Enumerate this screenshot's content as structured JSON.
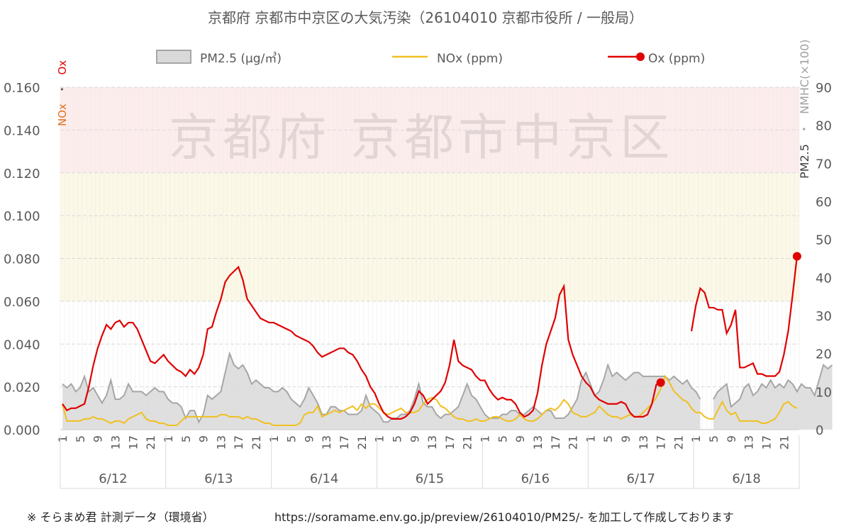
{
  "chart_data": {
    "type": "line",
    "title": "京都府 京都市中京区の大気汚染（26104010 京都市役所 / 一般局）",
    "watermark": "京都府  京都市中京区",
    "y_left": {
      "label_nox": "NOx",
      "label_sep": "・",
      "label_ox": "Ox",
      "range": [
        0,
        0.16
      ],
      "ticks": [
        "0.000",
        "0.020",
        "0.040",
        "0.060",
        "0.080",
        "0.100",
        "0.120",
        "0.140",
        "0.160"
      ]
    },
    "y_right": {
      "label_pm": "PM2.5",
      "label_sep": "・",
      "label_nmhc": "NMHC(×100)",
      "range": [
        0,
        90
      ],
      "ticks": [
        "0",
        "10",
        "20",
        "30",
        "40",
        "50",
        "60",
        "70",
        "80",
        "90"
      ]
    },
    "bands": [
      {
        "from": 0.12,
        "to": 0.16,
        "color": "#fdecec"
      },
      {
        "from": 0.06,
        "to": 0.12,
        "color": "#fcf8e6"
      }
    ],
    "hour_ticks": [
      "1",
      "5",
      "9",
      "13",
      "17",
      "21"
    ],
    "days": [
      "6/12",
      "6/13",
      "6/14",
      "6/15",
      "6/16",
      "6/17",
      "6/18"
    ],
    "hours_per_day": 24,
    "legend": [
      {
        "label": "PM2.5 (μg/㎥)",
        "kind": "area",
        "color": "#a6a6a6"
      },
      {
        "label": "NOx (ppm)",
        "kind": "line",
        "color": "#f0c020"
      },
      {
        "label": "Ox (ppm)",
        "kind": "line-marker",
        "color": "#e00000"
      }
    ],
    "series": [
      {
        "name": "PM2.5 (μg/㎥)",
        "axis": "right",
        "type": "area",
        "color": "#a6a6a6",
        "values": [
          12,
          11,
          12,
          10,
          11,
          14,
          10,
          11,
          9,
          7,
          9,
          13,
          8,
          8,
          9,
          12,
          10,
          10,
          10,
          9,
          10,
          11,
          10,
          10,
          8,
          7,
          7,
          6,
          3,
          5,
          5,
          2,
          4,
          9,
          8,
          9,
          10,
          15,
          20,
          17,
          16,
          17,
          15,
          12,
          13,
          12,
          11,
          11,
          10,
          10,
          11,
          10,
          8,
          7,
          6,
          8,
          11,
          9,
          7,
          4,
          4,
          6,
          6,
          5,
          5,
          4,
          4,
          4,
          5,
          9,
          6,
          5,
          4,
          2,
          2,
          3,
          3,
          4,
          4,
          5,
          8,
          12,
          7,
          6,
          6,
          4,
          3,
          4,
          4,
          5,
          6,
          9,
          12,
          9,
          8,
          6,
          4,
          3,
          3,
          3,
          4,
          4,
          5,
          5,
          4,
          4,
          5,
          6,
          5,
          4,
          5,
          5,
          3,
          3,
          3,
          4,
          6,
          8,
          13,
          15,
          12,
          9,
          10,
          13,
          17,
          14,
          15,
          14,
          13,
          14,
          15,
          15,
          14,
          14,
          14,
          14,
          14,
          14,
          13,
          14,
          13,
          12,
          13,
          11,
          10,
          8,
          null,
          null,
          8,
          10,
          11,
          12,
          6,
          7,
          8,
          11,
          12,
          9,
          10,
          12,
          11,
          13,
          11,
          12,
          11,
          13,
          12,
          10,
          12,
          11,
          11,
          9,
          13,
          17,
          16,
          17,
          null,
          null,
          null,
          null,
          null,
          null,
          null,
          null,
          null,
          null,
          null,
          null
        ]
      },
      {
        "name": "NOx (ppm)",
        "axis": "left",
        "type": "line",
        "color": "#f0c020",
        "values": [
          0.012,
          0.004,
          0.004,
          0.004,
          0.004,
          0.005,
          0.005,
          0.006,
          0.005,
          0.005,
          0.004,
          0.003,
          0.004,
          0.004,
          0.003,
          0.005,
          0.006,
          0.007,
          0.008,
          0.005,
          0.004,
          0.004,
          0.003,
          0.003,
          0.002,
          0.002,
          0.002,
          0.004,
          0.006,
          0.006,
          0.006,
          0.006,
          0.006,
          0.006,
          0.006,
          0.006,
          0.007,
          0.007,
          0.006,
          0.006,
          0.006,
          0.005,
          0.006,
          0.005,
          0.005,
          0.004,
          0.003,
          0.003,
          0.002,
          0.002,
          0.002,
          0.002,
          0.002,
          0.002,
          0.003,
          0.007,
          0.008,
          0.008,
          0.011,
          0.006,
          0.007,
          0.008,
          0.009,
          0.008,
          0.009,
          0.01,
          0.011,
          0.009,
          0.012,
          0.01,
          0.012,
          0.012,
          0.01,
          0.008,
          0.007,
          0.008,
          0.009,
          0.01,
          0.008,
          0.008,
          0.008,
          0.009,
          0.012,
          0.014,
          0.015,
          0.014,
          0.011,
          0.01,
          0.008,
          0.006,
          0.005,
          0.005,
          0.004,
          0.004,
          0.005,
          0.004,
          0.004,
          0.005,
          0.006,
          0.006,
          0.005,
          0.004,
          0.004,
          0.005,
          0.007,
          0.005,
          0.004,
          0.004,
          0.005,
          0.007,
          0.009,
          0.01,
          0.009,
          0.011,
          0.014,
          0.012,
          0.008,
          0.007,
          0.006,
          0.006,
          0.007,
          0.008,
          0.011,
          0.009,
          0.007,
          0.006,
          0.006,
          0.005,
          0.006,
          0.007,
          0.006,
          0.006,
          0.008,
          0.01,
          0.012,
          0.015,
          0.019,
          0.025,
          0.022,
          0.018,
          0.016,
          0.014,
          0.013,
          0.01,
          0.008,
          0.008,
          0.006,
          0.005,
          0.005,
          0.009,
          0.013,
          0.009,
          0.007,
          0.008,
          0.004,
          0.004,
          0.004,
          0.004,
          0.004,
          0.003,
          0.003,
          0.004,
          0.005,
          0.008,
          0.012,
          0.013,
          0.011,
          0.01,
          null,
          null,
          null,
          null,
          null,
          null,
          null,
          null,
          null,
          null,
          null,
          null
        ]
      },
      {
        "name": "Ox (ppm)",
        "axis": "left",
        "type": "line",
        "color": "#e00000",
        "values": [
          0.012,
          0.009,
          0.01,
          0.01,
          0.011,
          0.012,
          0.02,
          0.03,
          0.038,
          0.044,
          0.049,
          0.047,
          0.05,
          0.051,
          0.048,
          0.05,
          0.05,
          0.047,
          0.042,
          0.037,
          0.032,
          0.031,
          0.033,
          0.035,
          0.032,
          0.03,
          0.028,
          0.027,
          0.025,
          0.028,
          0.026,
          0.029,
          0.035,
          0.047,
          0.048,
          0.055,
          0.061,
          0.069,
          0.072,
          0.074,
          0.076,
          0.07,
          0.061,
          0.058,
          0.055,
          0.052,
          0.051,
          0.05,
          0.05,
          0.049,
          0.048,
          0.047,
          0.046,
          0.044,
          0.043,
          0.042,
          0.041,
          0.039,
          0.036,
          0.034,
          0.035,
          0.036,
          0.037,
          0.038,
          0.038,
          0.036,
          0.035,
          0.032,
          0.028,
          0.025,
          0.02,
          0.017,
          0.012,
          0.008,
          0.006,
          0.005,
          0.005,
          0.005,
          0.006,
          0.008,
          0.012,
          0.018,
          0.016,
          0.012,
          0.014,
          0.016,
          0.018,
          0.022,
          0.03,
          0.042,
          0.032,
          0.03,
          0.029,
          0.028,
          0.025,
          0.023,
          0.023,
          0.019,
          0.016,
          0.014,
          0.015,
          0.014,
          0.014,
          0.012,
          0.008,
          0.006,
          0.007,
          0.009,
          0.017,
          0.03,
          0.04,
          0.046,
          0.052,
          0.063,
          0.067,
          0.042,
          0.035,
          0.03,
          0.025,
          0.022,
          0.02,
          0.016,
          0.014,
          0.013,
          0.012,
          0.012,
          0.012,
          0.013,
          0.012,
          0.008,
          0.006,
          0.006,
          0.006,
          0.007,
          0.012,
          0.021,
          0.022,
          null,
          null,
          null,
          null,
          null,
          null,
          0.046,
          0.058,
          0.066,
          0.064,
          0.057,
          0.057,
          0.056,
          0.056,
          0.045,
          0.049,
          0.056,
          0.029,
          0.029,
          0.03,
          0.031,
          0.026,
          0.026,
          0.025,
          0.025,
          0.025,
          0.027,
          0.035,
          0.046,
          0.063,
          0.081,
          null,
          null,
          null,
          null,
          null,
          null,
          null,
          null,
          null,
          null,
          null,
          null
        ]
      }
    ],
    "ox_markers": [
      136,
      167
    ]
  },
  "footer": {
    "note": "※ そらまめ君 計測データ（環境省）",
    "source": "https://soramame.env.go.jp/preview/26104010/PM25/- を加工して作成しております"
  }
}
